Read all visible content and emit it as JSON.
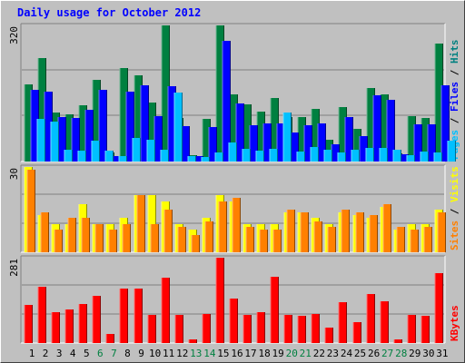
{
  "chart_data": [
    {
      "type": "bar",
      "title": "Daily usage for October 2012",
      "ylabel_parts": [
        {
          "text": "Pages",
          "color": "#00c0ff"
        },
        {
          "text": " / ",
          "color": "#000000"
        },
        {
          "text": "Files",
          "color": "#0000ff"
        },
        {
          "text": " / ",
          "color": "#000000"
        },
        {
          "text": "Hits",
          "color": "#008080"
        }
      ],
      "ymax_label": "320",
      "ylim": [
        0,
        320
      ],
      "categories": [
        "1",
        "2",
        "3",
        "4",
        "5",
        "6",
        "7",
        "8",
        "9",
        "10",
        "11",
        "12",
        "13",
        "14",
        "15",
        "16",
        "17",
        "18",
        "19",
        "20",
        "21",
        "22",
        "23",
        "24",
        "25",
        "26",
        "27",
        "28",
        "29",
        "30",
        "31"
      ],
      "weekend_days": [
        "6",
        "7",
        "13",
        "14",
        "20",
        "21",
        "27",
        "28"
      ],
      "series": [
        {
          "name": "Hits",
          "color": "#008040",
          "values": [
            182,
            244,
            115,
            111,
            132,
            193,
            21,
            219,
            203,
            139,
            320,
            103,
            14,
            101,
            320,
            158,
            135,
            117,
            150,
            105,
            104,
            123,
            51,
            127,
            77,
            172,
            158,
            19,
            106,
            103,
            278
          ]
        },
        {
          "name": "Files",
          "color": "#0000ff",
          "values": [
            169,
            165,
            104,
            103,
            122,
            168,
            12,
            165,
            179,
            106,
            178,
            84,
            12,
            82,
            283,
            137,
            86,
            89,
            89,
            69,
            86,
            90,
            40,
            105,
            60,
            156,
            146,
            16,
            88,
            87,
            179
          ]
        },
        {
          "name": "Pages",
          "color": "#00c0ff",
          "values": [
            101,
            93,
            27,
            25,
            50,
            25,
            12,
            56,
            51,
            28,
            162,
            13,
            10,
            21,
            44,
            29,
            25,
            29,
            115,
            24,
            35,
            28,
            21,
            28,
            31,
            33,
            28,
            14,
            24,
            22,
            50
          ]
        }
      ]
    },
    {
      "type": "bar",
      "ylabel_parts": [
        {
          "text": "Sites",
          "color": "#ff8000"
        },
        {
          "text": " / ",
          "color": "#000000"
        },
        {
          "text": "Visits",
          "color": "#ffff00"
        }
      ],
      "ymax_label": "30",
      "ylim": [
        0,
        30
      ],
      "categories": [
        "1",
        "2",
        "3",
        "4",
        "5",
        "6",
        "7",
        "8",
        "9",
        "10",
        "11",
        "12",
        "13",
        "14",
        "15",
        "16",
        "17",
        "18",
        "19",
        "20",
        "21",
        "22",
        "23",
        "24",
        "25",
        "26",
        "27",
        "28",
        "29",
        "30",
        "31"
      ],
      "series": [
        {
          "name": "Visits",
          "color": "#ffff00",
          "values": [
            30,
            13,
            10,
            10,
            17,
            10,
            10,
            12,
            20,
            20,
            18,
            10,
            8,
            12,
            20,
            18,
            10,
            10,
            10,
            14,
            14,
            12,
            10,
            14,
            13,
            12,
            16,
            8,
            10,
            10,
            15
          ]
        },
        {
          "name": "Sites",
          "color": "#ff8000",
          "values": [
            29,
            14,
            8,
            12,
            12,
            10,
            8,
            10,
            20,
            10,
            15,
            9,
            6,
            11,
            18,
            19,
            9,
            8,
            8,
            15,
            14,
            11,
            9,
            15,
            14,
            13,
            17,
            9,
            8,
            9,
            14
          ]
        }
      ]
    },
    {
      "type": "bar",
      "ylabel_parts": [
        {
          "text": "KBytes",
          "color": "#ff0000"
        }
      ],
      "ymax_label": "281",
      "ylim": [
        0,
        281
      ],
      "categories": [
        "1",
        "2",
        "3",
        "4",
        "5",
        "6",
        "7",
        "8",
        "9",
        "10",
        "11",
        "12",
        "13",
        "14",
        "15",
        "16",
        "17",
        "18",
        "19",
        "20",
        "21",
        "22",
        "23",
        "24",
        "25",
        "26",
        "27",
        "28",
        "29",
        "30",
        "31"
      ],
      "series": [
        {
          "name": "KBytes",
          "color": "#ff0000",
          "values": [
            127,
            186,
            101,
            111,
            129,
            155,
            29,
            179,
            180,
            92,
            215,
            94,
            11,
            97,
            281,
            147,
            92,
            103,
            217,
            93,
            91,
            97,
            51,
            135,
            70,
            162,
            137,
            13,
            92,
            91,
            231
          ]
        }
      ]
    }
  ]
}
